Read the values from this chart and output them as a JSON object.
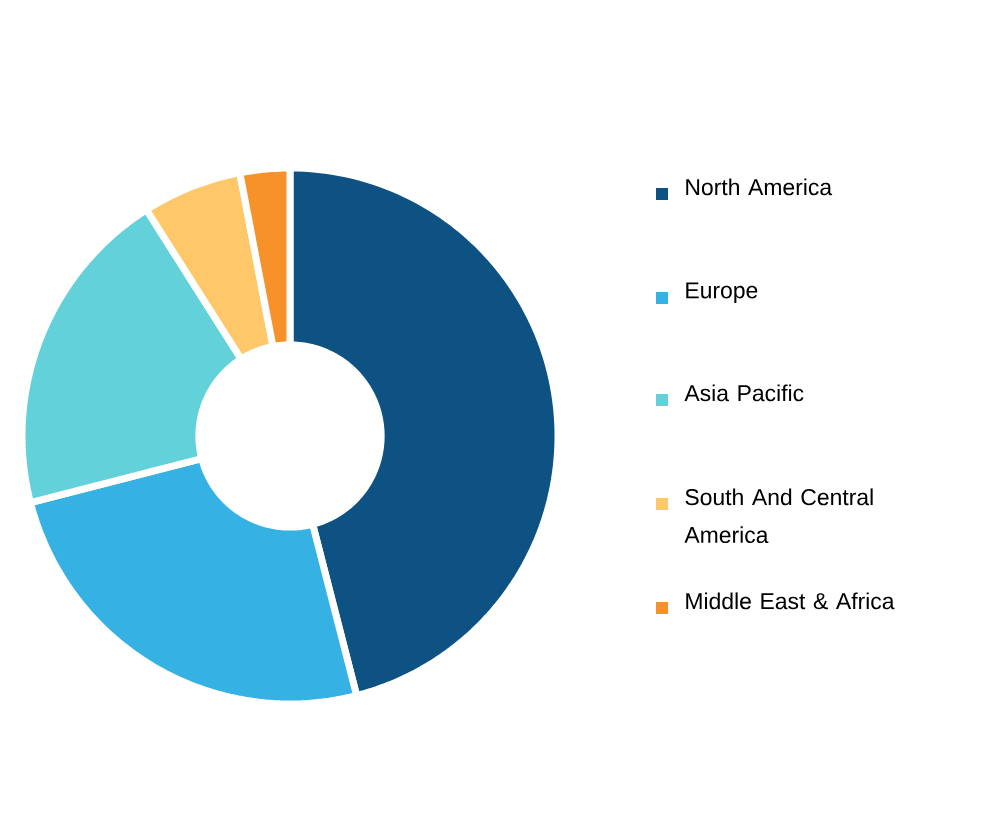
{
  "chart_data": {
    "type": "donut",
    "categories": [
      "North America",
      "Europe",
      "Asia Pacific",
      "South And Central America",
      "Middle East & Africa"
    ],
    "values": [
      46,
      25,
      20,
      6,
      3
    ],
    "colors": [
      "#0d5282",
      "#35b1e3",
      "#63d1d9",
      "#fec86a",
      "#f7922b"
    ],
    "legend": "right"
  }
}
